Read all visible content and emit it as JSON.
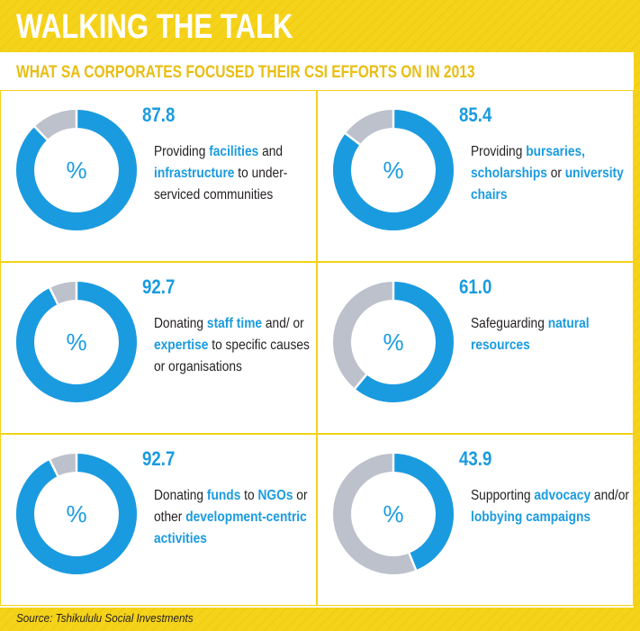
{
  "title": "WALKING THE TALK",
  "subtitle": "WHAT SA CORPORATES FOCUSED THEIR CSI EFFORTS ON IN 2013",
  "source": "Source: Tshikululu Social Investments",
  "colors": {
    "accent": "#1a9be0",
    "remainder": "#bcc1cc",
    "frame": "#f5d31b",
    "subtitle": "#e8be12"
  },
  "percent_symbol": "%",
  "chart_data": {
    "type": "pie",
    "title": "WHAT SA CORPORATES FOCUSED THEIR CSI EFFORTS ON IN 2013",
    "unit": "%",
    "items": [
      {
        "value": 87.8,
        "value_label": "87.8",
        "text": [
          {
            "t": "Providing "
          },
          {
            "t": "facilities",
            "h": true
          },
          {
            "t": " and "
          },
          {
            "t": "infrastructure",
            "h": true
          },
          {
            "t": " to under-serviced communities"
          }
        ]
      },
      {
        "value": 85.4,
        "value_label": "85.4",
        "text": [
          {
            "t": "Providing "
          },
          {
            "t": "bursaries, scholarships",
            "h": true
          },
          {
            "t": " or "
          },
          {
            "t": "university chairs",
            "h": true
          }
        ]
      },
      {
        "value": 92.7,
        "value_label": "92.7",
        "text": [
          {
            "t": "Donating "
          },
          {
            "t": "staff time",
            "h": true
          },
          {
            "t": " and/ or "
          },
          {
            "t": "expertise",
            "h": true
          },
          {
            "t": " to specific causes or organisations"
          }
        ]
      },
      {
        "value": 61.0,
        "value_label": "61.0",
        "text": [
          {
            "t": "Safeguarding "
          },
          {
            "t": "natural resources",
            "h": true
          }
        ]
      },
      {
        "value": 92.7,
        "value_label": "92.7",
        "text": [
          {
            "t": "Donating "
          },
          {
            "t": "funds",
            "h": true
          },
          {
            "t": " to "
          },
          {
            "t": "NGOs",
            "h": true
          },
          {
            "t": " or other "
          },
          {
            "t": "development-centric activities",
            "h": true
          }
        ]
      },
      {
        "value": 43.9,
        "value_label": "43.9",
        "text": [
          {
            "t": "Supporting "
          },
          {
            "t": "advocacy",
            "h": true
          },
          {
            "t": " and/or "
          },
          {
            "t": "lobbying campaigns",
            "h": true
          }
        ]
      }
    ]
  }
}
